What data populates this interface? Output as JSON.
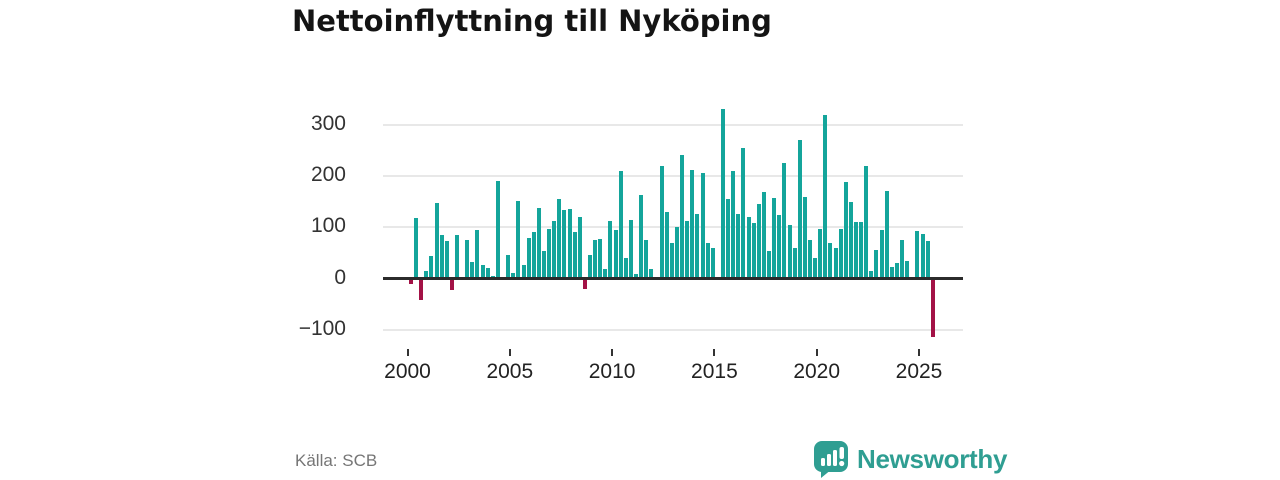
{
  "title": "Nettoinflyttning till Nyköping",
  "source": "Källa: SCB",
  "brand": {
    "name": "Newsworthy",
    "logo_icon": "speech-bubble-with-bar-chart-and-exclamation"
  },
  "colors": {
    "positive_bar": "#14a59b",
    "negative_bar": "#a31246",
    "brand_teal": "#2f9e92",
    "axis_line": "#2b2b2b",
    "gridline": "#e8e8e8",
    "tick_text": "#333333",
    "title_text": "#141414",
    "source_text": "#767676"
  },
  "chart_data": {
    "type": "bar",
    "title": "Nettoinflyttning till Nyköping",
    "xlabel": "",
    "ylabel": "",
    "grid": "horizontal",
    "legend": "none",
    "ylim": [
      -140,
      360
    ],
    "y_ticks": [
      300,
      200,
      100,
      0,
      -100
    ],
    "y_tick_labels": [
      "300",
      "200",
      "100",
      "0",
      "−100"
    ],
    "x_tick_years": [
      2000,
      2005,
      2010,
      2015,
      2020,
      2025
    ],
    "x_tick_labels": [
      "2000",
      "2005",
      "2010",
      "2015",
      "2020",
      "2025"
    ],
    "x": [
      "2000 Q1",
      "2000 Q2",
      "2000 Q3",
      "2000 Q4",
      "2001 Q1",
      "2001 Q2",
      "2001 Q3",
      "2001 Q4",
      "2002 Q1",
      "2002 Q2",
      "2002 Q3",
      "2002 Q4",
      "2003 Q1",
      "2003 Q2",
      "2003 Q3",
      "2003 Q4",
      "2004 Q1",
      "2004 Q2",
      "2004 Q3",
      "2004 Q4",
      "2005 Q1",
      "2005 Q2",
      "2005 Q3",
      "2005 Q4",
      "2006 Q1",
      "2006 Q2",
      "2006 Q3",
      "2006 Q4",
      "2007 Q1",
      "2007 Q2",
      "2007 Q3",
      "2007 Q4",
      "2008 Q1",
      "2008 Q2",
      "2008 Q3",
      "2008 Q4",
      "2009 Q1",
      "2009 Q2",
      "2009 Q3",
      "2009 Q4",
      "2010 Q1",
      "2010 Q2",
      "2010 Q3",
      "2010 Q4",
      "2011 Q1",
      "2011 Q2",
      "2011 Q3",
      "2011 Q4",
      "2012 Q1",
      "2012 Q2",
      "2012 Q3",
      "2012 Q4",
      "2013 Q1",
      "2013 Q2",
      "2013 Q3",
      "2013 Q4",
      "2014 Q1",
      "2014 Q2",
      "2014 Q3",
      "2014 Q4",
      "2015 Q1",
      "2015 Q2",
      "2015 Q3",
      "2015 Q4",
      "2016 Q1",
      "2016 Q2",
      "2016 Q3",
      "2016 Q4",
      "2017 Q1",
      "2017 Q2",
      "2017 Q3",
      "2017 Q4",
      "2018 Q1",
      "2018 Q2",
      "2018 Q3",
      "2018 Q4",
      "2019 Q1",
      "2019 Q2",
      "2019 Q3",
      "2019 Q4",
      "2020 Q1",
      "2020 Q2",
      "2020 Q3",
      "2020 Q4",
      "2021 Q1",
      "2021 Q2",
      "2021 Q3",
      "2021 Q4",
      "2022 Q1",
      "2022 Q2",
      "2022 Q3",
      "2022 Q4",
      "2023 Q1",
      "2023 Q2",
      "2023 Q3",
      "2023 Q4",
      "2024 Q1",
      "2024 Q2",
      "2024 Q3",
      "2024 Q4",
      "2025 Q1",
      "2025 Q2",
      "2025 Q3"
    ],
    "values": [
      -10,
      118,
      -42,
      15,
      43,
      148,
      84,
      74,
      -23,
      85,
      2,
      76,
      32,
      95,
      27,
      20,
      5,
      190,
      2,
      46,
      10,
      152,
      26,
      79,
      91,
      137,
      53,
      97,
      112,
      155,
      134,
      136,
      90,
      119,
      -20,
      45,
      75,
      77,
      18,
      112,
      95,
      210,
      39,
      114,
      9,
      163,
      75,
      18,
      2,
      220,
      129,
      70,
      100,
      240,
      112,
      212,
      125,
      205,
      70,
      59,
      2,
      330,
      155,
      210,
      125,
      255,
      119,
      109,
      145,
      168,
      54,
      157,
      124,
      225,
      105,
      59,
      270,
      158,
      75,
      40,
      96,
      318,
      70,
      60,
      97,
      188,
      150,
      111,
      110,
      220,
      15,
      55,
      94,
      171,
      22,
      31,
      75,
      34,
      2,
      92,
      86,
      73,
      -115
    ]
  }
}
